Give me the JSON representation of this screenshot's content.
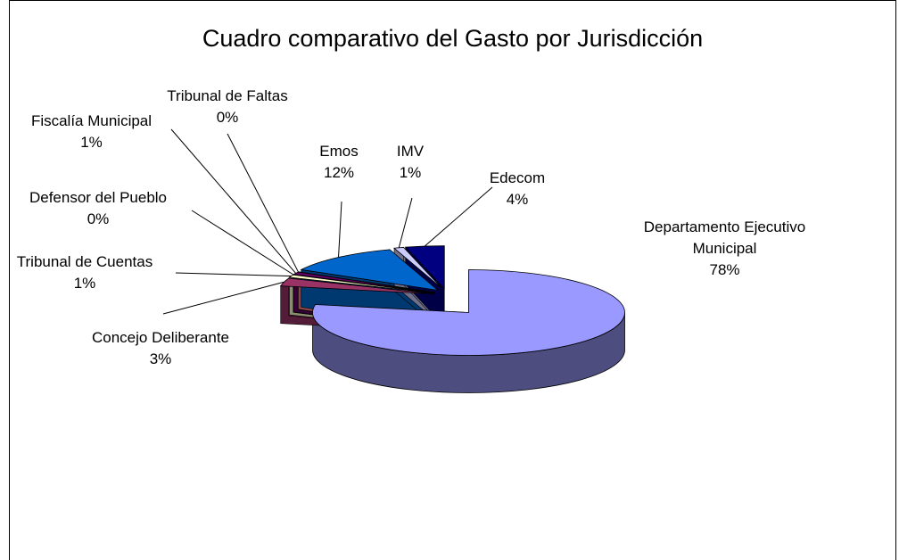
{
  "chart_data": {
    "type": "pie3d",
    "title": "Cuadro comparativo del Gasto por Jurisdicción",
    "categories": [
      "Departamento Ejecutivo Municipal",
      "Concejo Deliberante",
      "Tribunal de Cuentas",
      "Defensor del Pueblo",
      "Fiscalía Municipal",
      "Tribunal de Faltas",
      "Emos",
      "IMV",
      "Edecom"
    ],
    "values": [
      78,
      3,
      1,
      0,
      1,
      0,
      12,
      1,
      4
    ],
    "value_labels": [
      "78%",
      "3%",
      "1%",
      "0%",
      "1%",
      "0%",
      "12%",
      "1%",
      "4%"
    ],
    "colors": [
      "#9999ff",
      "#993366",
      "#ffffcc",
      "#ccffff",
      "#660066",
      "#ff8080",
      "#0066cc",
      "#ccccff",
      "#000080"
    ]
  }
}
